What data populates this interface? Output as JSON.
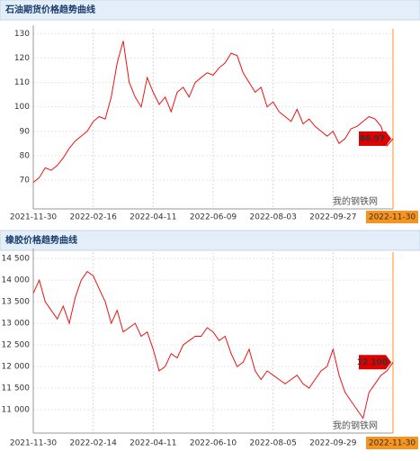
{
  "chart_data": [
    {
      "type": "line",
      "title": "石油期货价格趋势曲线",
      "watermark": "我的钢铁网",
      "color": "#ee1111",
      "grid": true,
      "categories": [
        "2021-11-30",
        null,
        null,
        null,
        null,
        null,
        null,
        null,
        null,
        null,
        "2022-02-16",
        null,
        null,
        null,
        null,
        null,
        null,
        null,
        null,
        null,
        "2022-04-11",
        null,
        null,
        null,
        null,
        null,
        null,
        null,
        null,
        null,
        "2022-06-09",
        null,
        null,
        null,
        null,
        null,
        null,
        null,
        null,
        null,
        "2022-08-03",
        null,
        null,
        null,
        null,
        null,
        null,
        null,
        null,
        null,
        "2022-09-27",
        null,
        null,
        null,
        null,
        null,
        null,
        null,
        null,
        null,
        "2022-11-30"
      ],
      "values": [
        69,
        71,
        75,
        74,
        76,
        79,
        83,
        86,
        88,
        90,
        94,
        96,
        95,
        104,
        118,
        127,
        110,
        104,
        100,
        112,
        106,
        101,
        104,
        98,
        106,
        108,
        104,
        110,
        112,
        114,
        113,
        116,
        118,
        122,
        121,
        114,
        110,
        106,
        108,
        100,
        102,
        98,
        96,
        94,
        99,
        93,
        95,
        92,
        90,
        88,
        90,
        85,
        87,
        91,
        92,
        94,
        96,
        95,
        92,
        84,
        86.97
      ],
      "value_labels": [
        null,
        null,
        null,
        null,
        null,
        null,
        null,
        null,
        null,
        null,
        null,
        null,
        null,
        null,
        null,
        null,
        null,
        null,
        null,
        null,
        null,
        null,
        null,
        null,
        null,
        null,
        null,
        null,
        null,
        null,
        null,
        null,
        null,
        null,
        null,
        null,
        null,
        null,
        null,
        null,
        null,
        null,
        null,
        null,
        null,
        null,
        null,
        null,
        null,
        null,
        null,
        null,
        null,
        null,
        null,
        null,
        null,
        null,
        null,
        null,
        "86.97"
      ],
      "ylim": [
        60,
        132
      ],
      "yticks": [
        70,
        80,
        90,
        100,
        110,
        120,
        130
      ]
    },
    {
      "type": "line",
      "title": "橡胶价格趋势曲线",
      "watermark": "我的钢铁网",
      "color": "#ee1111",
      "grid": true,
      "categories": [
        "2021-11-30",
        null,
        null,
        null,
        null,
        null,
        null,
        null,
        null,
        null,
        "2022-02-14",
        null,
        null,
        null,
        null,
        null,
        null,
        null,
        null,
        null,
        "2022-04-11",
        null,
        null,
        null,
        null,
        null,
        null,
        null,
        null,
        null,
        "2022-06-10",
        null,
        null,
        null,
        null,
        null,
        null,
        null,
        null,
        null,
        "2022-08-05",
        null,
        null,
        null,
        null,
        null,
        null,
        null,
        null,
        null,
        "2022-09-29",
        null,
        null,
        null,
        null,
        null,
        null,
        null,
        null,
        null,
        "2022-11-30"
      ],
      "values": [
        13700,
        14000,
        13500,
        13300,
        13100,
        13400,
        13000,
        13600,
        14000,
        14200,
        14100,
        13800,
        13500,
        13000,
        13300,
        12800,
        12900,
        13000,
        12700,
        12800,
        12400,
        11900,
        12000,
        12300,
        12200,
        12500,
        12600,
        12700,
        12700,
        12900,
        12800,
        12600,
        12700,
        12300,
        12000,
        12100,
        12400,
        11900,
        11700,
        11900,
        11800,
        11700,
        11600,
        11700,
        11800,
        11600,
        11500,
        11700,
        11900,
        12000,
        12400,
        11800,
        11400,
        11200,
        11000,
        10800,
        11400,
        11600,
        11800,
        11900,
        12100
      ],
      "value_labels": [
        null,
        null,
        null,
        null,
        null,
        null,
        null,
        null,
        null,
        null,
        null,
        null,
        null,
        null,
        null,
        null,
        null,
        null,
        null,
        null,
        null,
        null,
        null,
        null,
        null,
        null,
        null,
        null,
        null,
        null,
        null,
        null,
        null,
        null,
        null,
        null,
        null,
        null,
        null,
        null,
        null,
        null,
        null,
        null,
        null,
        null,
        null,
        null,
        null,
        null,
        null,
        null,
        null,
        null,
        null,
        null,
        null,
        null,
        null,
        null,
        "12 100"
      ],
      "ylim": [
        10500,
        14650
      ],
      "yticks": [
        {
          "value": 11000,
          "label": "11 000"
        },
        {
          "value": 11500,
          "label": "11 500"
        },
        {
          "value": 12000,
          "label": "12 000"
        },
        {
          "value": 12500,
          "label": "12 500"
        },
        {
          "value": 13000,
          "label": "13 000"
        },
        {
          "value": 13500,
          "label": "13 500"
        },
        {
          "value": 14000,
          "label": "14 000"
        },
        {
          "value": 14500,
          "label": "14 500"
        }
      ]
    }
  ]
}
